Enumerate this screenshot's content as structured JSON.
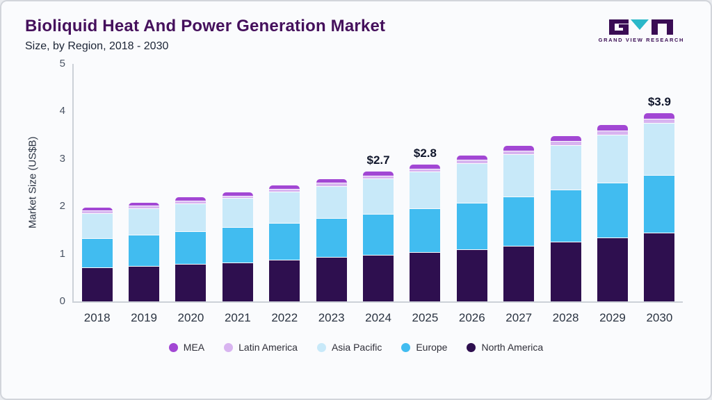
{
  "header": {
    "title": "Bioliquid Heat And Power Generation Market",
    "subtitle": "Size, by Region, 2018 - 2030"
  },
  "logo": {
    "text": "GRAND VIEW RESEARCH"
  },
  "chart_data": {
    "type": "bar",
    "stacked": true,
    "title": "Bioliquid Heat And Power Generation Market Size, by Region, 2018 - 2030",
    "xlabel": "",
    "ylabel": "Market Size (US$B)",
    "ylim": [
      0,
      5
    ],
    "yticks": [
      0,
      1,
      2,
      3,
      4,
      5
    ],
    "grid": false,
    "legend_position": "bottom",
    "categories": [
      "2018",
      "2019",
      "2020",
      "2021",
      "2022",
      "2023",
      "2024",
      "2025",
      "2026",
      "2027",
      "2028",
      "2029",
      "2030"
    ],
    "series": [
      {
        "name": "North America",
        "color": "#2e0f4f",
        "values": [
          0.7,
          0.73,
          0.77,
          0.81,
          0.86,
          0.92,
          0.97,
          1.02,
          1.08,
          1.16,
          1.24,
          1.33,
          1.43
        ]
      },
      {
        "name": "Europe",
        "color": "#41bcf0",
        "values": [
          0.6,
          0.64,
          0.68,
          0.72,
          0.77,
          0.8,
          0.85,
          0.91,
          0.96,
          1.02,
          1.08,
          1.14,
          1.2
        ]
      },
      {
        "name": "Asia Pacific",
        "color": "#c8e9f9",
        "values": [
          0.52,
          0.55,
          0.57,
          0.6,
          0.63,
          0.67,
          0.72,
          0.76,
          0.82,
          0.88,
          0.93,
          1.0,
          1.08
        ]
      },
      {
        "name": "Latin America",
        "color": "#d8b4f0",
        "values": [
          0.04,
          0.04,
          0.04,
          0.04,
          0.05,
          0.05,
          0.05,
          0.05,
          0.06,
          0.06,
          0.07,
          0.07,
          0.08
        ]
      },
      {
        "name": "MEA",
        "color": "#a247d4",
        "values": [
          0.06,
          0.06,
          0.07,
          0.07,
          0.07,
          0.07,
          0.08,
          0.08,
          0.09,
          0.09,
          0.1,
          0.11,
          0.12
        ]
      }
    ],
    "value_labels": [
      "",
      "",
      "",
      "",
      "",
      "",
      "$2.7",
      "$2.8",
      "",
      "",
      "",
      "",
      "$3.9"
    ],
    "legend_order": [
      "MEA",
      "Latin America",
      "Asia Pacific",
      "Europe",
      "North America"
    ]
  }
}
